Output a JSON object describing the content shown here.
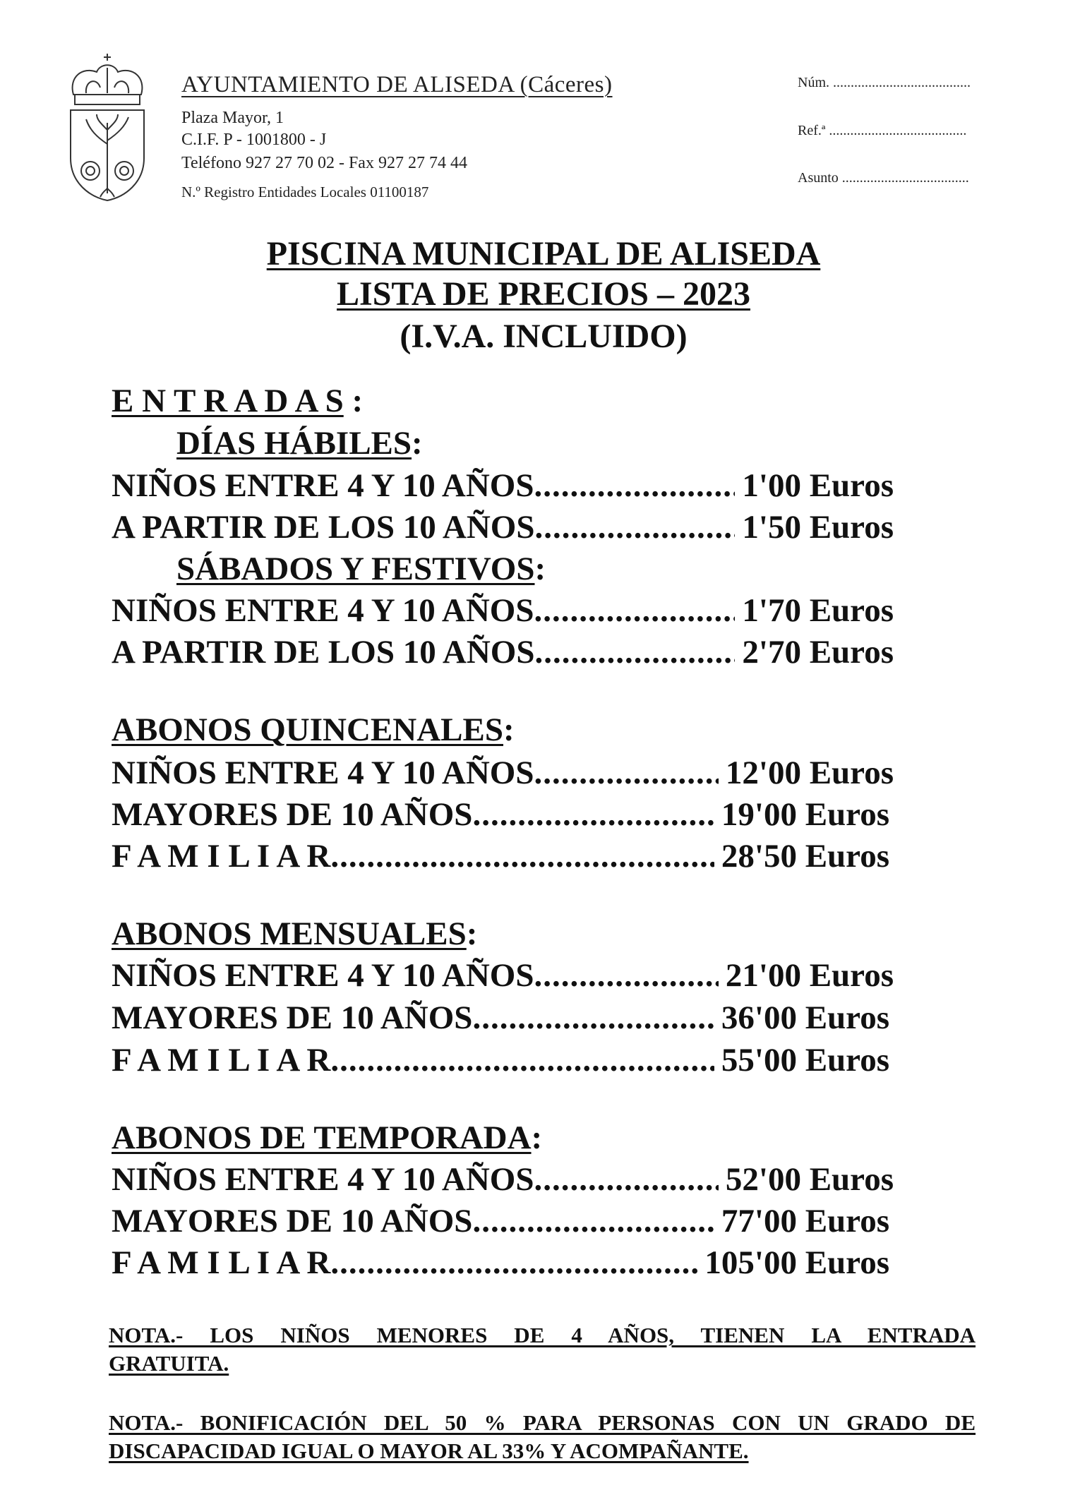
{
  "header": {
    "crest_icon": "coat-of-arms-crest",
    "title": "AYUNTAMIENTO DE ALISEDA (Cáceres)",
    "address": "Plaza Mayor, 1",
    "cif": "C.I.F. P - 1001800 - J",
    "phone": "Teléfono 927 27 70 02 - Fax 927 27 74 44",
    "registry": "N.º Registro Entidades Locales 01100187",
    "fields": [
      "Núm. .......................................",
      "Ref.ª .......................................",
      "Asunto ...................................."
    ]
  },
  "title": {
    "line1": "PISCINA MUNICIPAL DE ALISEDA",
    "line2": "LISTA DE PRECIOS – 2023",
    "line3": "(I.V.A. INCLUIDO)"
  },
  "entradas": {
    "heading": "E N T R A D A S",
    "heading_suffix": " :",
    "dias_habiles": {
      "heading": "DÍAS HÁBILES",
      "rows": [
        {
          "label": "NIÑOS ENTRE 4 Y 10 AÑOS",
          "price": "1'00 Euros"
        },
        {
          "label": "A PARTIR DE LOS 10 AÑOS",
          "price": "1'50 Euros"
        }
      ]
    },
    "sabados": {
      "heading": "SÁBADOS Y FESTIVOS",
      "rows": [
        {
          "label": "NIÑOS ENTRE 4 Y 10 AÑOS",
          "price": "1'70 Euros"
        },
        {
          "label": "A PARTIR DE LOS 10 AÑOS",
          "price": "2'70 Euros"
        }
      ]
    }
  },
  "quincenales": {
    "heading": "ABONOS QUINCENALES",
    "rows": [
      {
        "label": "NIÑOS ENTRE 4 Y 10 AÑOS",
        "price": "12'00 Euros"
      },
      {
        "label": "MAYORES DE 10 AÑOS",
        "price": "19'00 Euros"
      },
      {
        "label": "F A M I L I A R",
        "price": "28'50 Euros"
      }
    ]
  },
  "mensuales": {
    "heading": "ABONOS MENSUALES",
    "rows": [
      {
        "label": "NIÑOS ENTRE 4 Y 10 AÑOS",
        "price": "21'00 Euros"
      },
      {
        "label": "MAYORES DE 10 AÑOS",
        "price": "36'00 Euros"
      },
      {
        "label": "F A M I L I A R",
        "price": "55'00 Euros"
      }
    ]
  },
  "temporada": {
    "heading": "ABONOS DE TEMPORADA",
    "rows": [
      {
        "label": "NIÑOS ENTRE 4 Y 10 AÑOS",
        "price": "52'00 Euros"
      },
      {
        "label": "MAYORES DE 10 AÑOS",
        "price": "77'00 Euros"
      },
      {
        "label": "F A M I L I A R",
        "price": "105'00 Euros"
      }
    ]
  },
  "colon": ":",
  "dots": "....................................................................................................",
  "notes": [
    [
      "NOTA.- LOS NIÑOS MENORES DE 4 AÑOS, TIENEN LA ENTRADA",
      "GRATUITA."
    ],
    [
      "NOTA.- BONIFICACIÓN DEL 50 % PARA PERSONAS CON UN GRADO DE",
      "DISCAPACIDAD IGUAL O MAYOR AL 33% Y ACOMPAÑANTE."
    ]
  ]
}
